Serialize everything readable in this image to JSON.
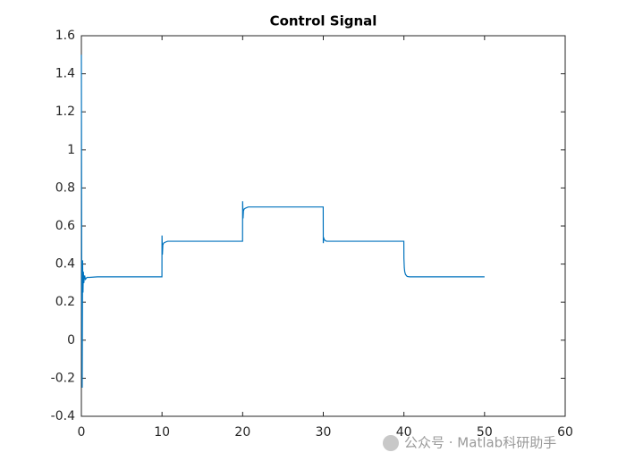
{
  "chart_data": {
    "type": "line",
    "title": "Control Signal",
    "x": [
      0,
      0.05,
      0.1,
      0.15,
      0.2,
      0.25,
      0.3,
      0.4,
      0.5,
      0.7,
      1,
      2,
      9.99,
      10,
      10.05,
      10.1,
      10.2,
      10.4,
      10.7,
      11,
      12,
      19.99,
      20,
      20.05,
      20.1,
      20.2,
      20.4,
      20.7,
      21,
      22,
      29.99,
      30,
      30.05,
      30.1,
      30.2,
      30.4,
      30.7,
      31,
      32,
      39.99,
      40,
      40.05,
      40.1,
      40.2,
      40.4,
      40.7,
      41,
      42,
      50
    ],
    "values": [
      1.5,
      0.2,
      -0.25,
      0.42,
      0.25,
      0.36,
      0.3,
      0.34,
      0.32,
      0.33,
      0.33,
      0.333,
      0.333,
      0.55,
      0.45,
      0.5,
      0.51,
      0.515,
      0.52,
      0.52,
      0.52,
      0.52,
      0.73,
      0.64,
      0.68,
      0.69,
      0.695,
      0.7,
      0.7,
      0.7,
      0.7,
      0.51,
      0.54,
      0.53,
      0.525,
      0.52,
      0.52,
      0.52,
      0.52,
      0.52,
      0.43,
      0.38,
      0.36,
      0.345,
      0.335,
      0.333,
      0.333,
      0.333,
      0.333
    ],
    "color": "#0072bd",
    "xlim": [
      0,
      60
    ],
    "xticks": [
      0,
      10,
      20,
      30,
      40,
      50,
      60
    ],
    "ylim": [
      -0.4,
      1.6
    ],
    "yticks": [
      -0.4,
      -0.2,
      0,
      0.2,
      0.4,
      0.6,
      0.8,
      1,
      1.2,
      1.4,
      1.6
    ],
    "grid": false
  },
  "watermark": "公众号 · Matlab科研助手"
}
